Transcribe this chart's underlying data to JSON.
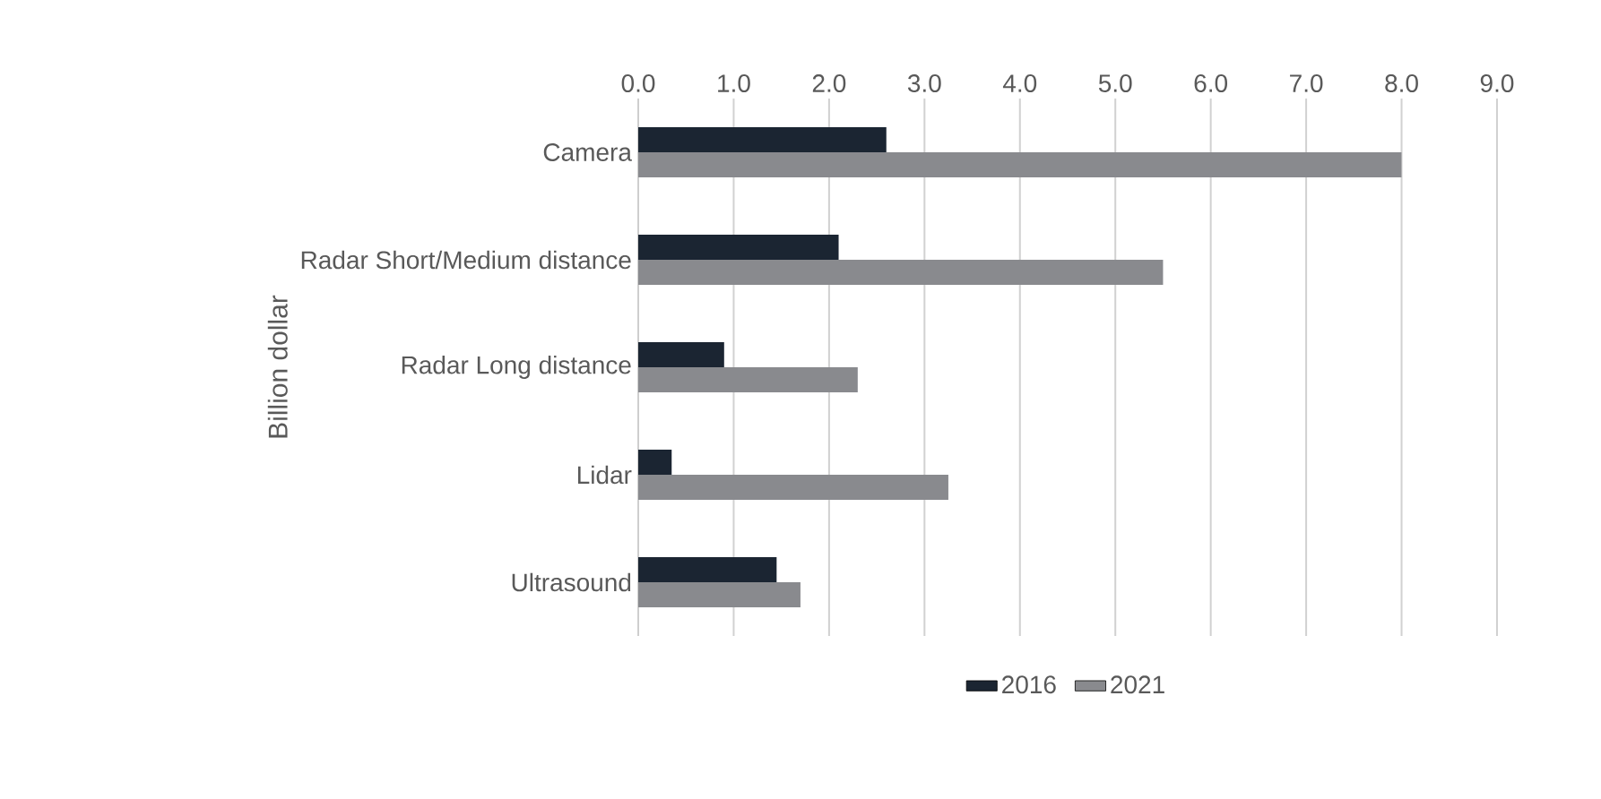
{
  "chart_data": {
    "type": "bar",
    "orientation": "horizontal",
    "ylabel": "Billion dollar",
    "categories": [
      "Camera",
      "Radar Short/Medium distance",
      "Radar Long distance",
      "Lidar",
      "Ultrasound"
    ],
    "series": [
      {
        "name": "2016",
        "color": "#1b2532",
        "values": [
          2.6,
          2.1,
          0.9,
          0.35,
          1.45
        ]
      },
      {
        "name": "2021",
        "color": "#898a8e",
        "values": [
          8.0,
          5.5,
          2.3,
          3.25,
          1.7
        ]
      }
    ],
    "xlim": [
      0,
      9
    ],
    "xticks": [
      {
        "value": 0,
        "label": "0.0"
      },
      {
        "value": 1,
        "label": "1.0"
      },
      {
        "value": 2,
        "label": "2.0"
      },
      {
        "value": 3,
        "label": "3.0"
      },
      {
        "value": 4,
        "label": "4.0"
      },
      {
        "value": 5,
        "label": "5.0"
      },
      {
        "value": 6,
        "label": "6.0"
      },
      {
        "value": 7,
        "label": "7.0"
      },
      {
        "value": 8,
        "label": "8.0"
      },
      {
        "value": 9,
        "label": "9.0"
      }
    ],
    "grid": "x",
    "legend": "bottom"
  }
}
